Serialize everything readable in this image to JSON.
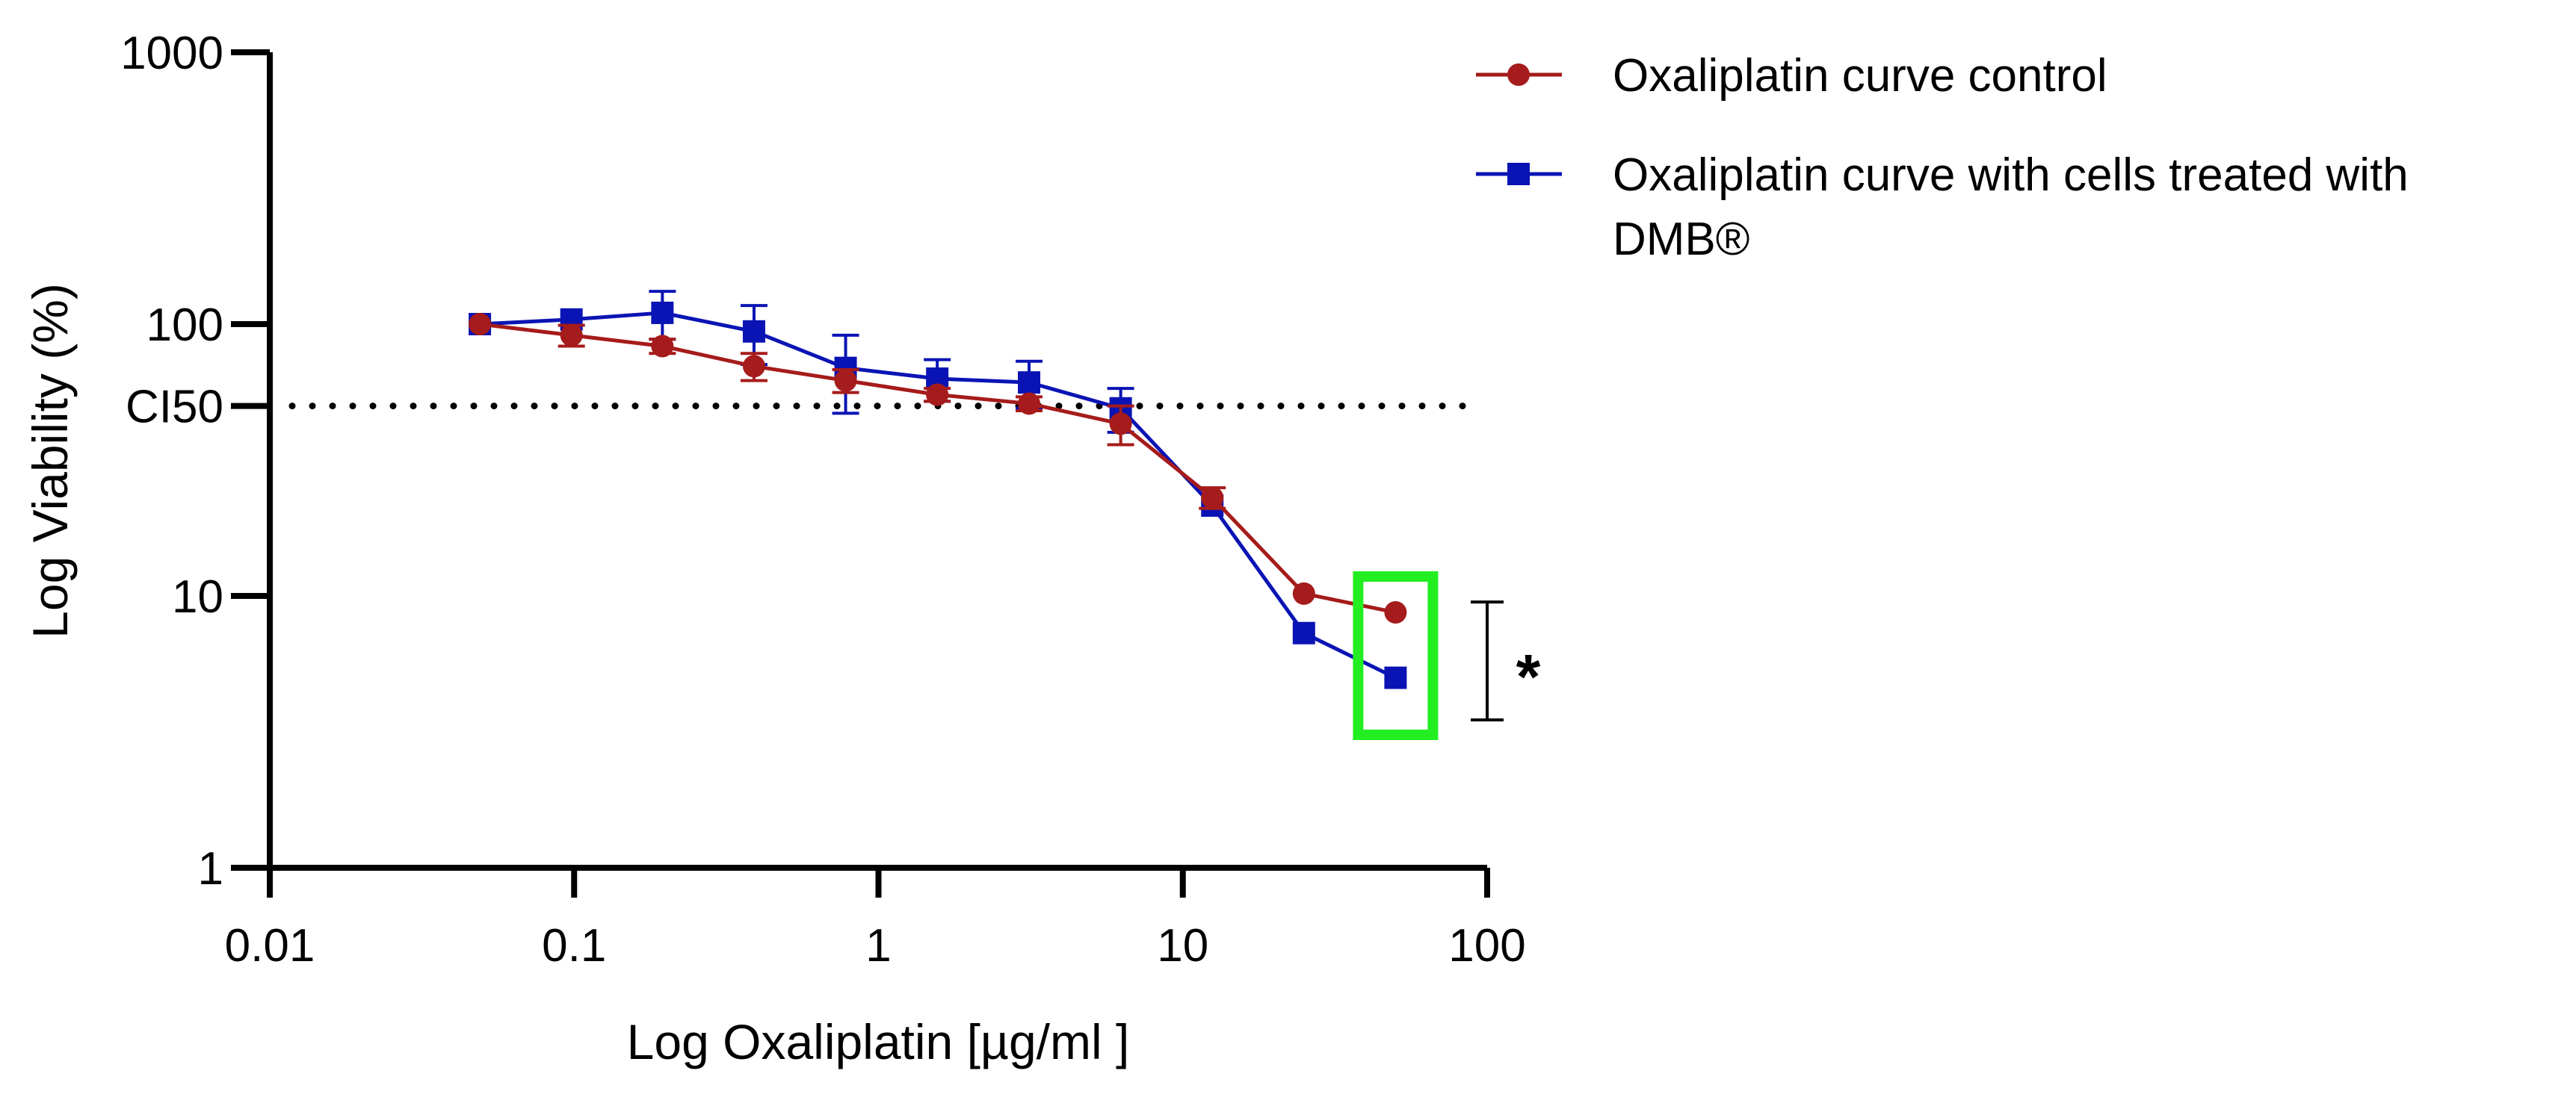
{
  "chart_data": {
    "type": "line",
    "title": "",
    "xlabel": "Log Oxaliplatin [µg/ml ]",
    "ylabel": "Log Viability (%)",
    "xscale": "log",
    "yscale": "log",
    "xlim": [
      0.01,
      100
    ],
    "ylim": [
      1,
      1000
    ],
    "x_ticks": [
      "0.01",
      "0.1",
      "1",
      "10",
      "100"
    ],
    "y_ticks": [
      "1",
      "10",
      "100",
      "1000"
    ],
    "x_tick_values": [
      0.01,
      0.1,
      1,
      10,
      100
    ],
    "y_tick_values": [
      1,
      10,
      100,
      1000
    ],
    "reference_line": {
      "label": "CI50",
      "y": 50,
      "style": "dotted"
    },
    "x": [
      0.049,
      0.098,
      0.195,
      0.39,
      0.78,
      1.56,
      3.125,
      6.25,
      12.5,
      25,
      50
    ],
    "series": [
      {
        "name": "Oxaliplatin curve control",
        "color": "#a61b1b",
        "marker": "circle",
        "values": [
          100,
          91,
          83,
          70,
          62,
          55,
          51,
          43,
          23,
          10.2,
          8.7
        ],
        "error": [
          0,
          8,
          5,
          8,
          6,
          3,
          3,
          7,
          2,
          0,
          0
        ]
      },
      {
        "name": "Oxaliplatin curve with cells treated with DMB®",
        "color": "#0a14b4",
        "marker": "square",
        "values": [
          100,
          104,
          110,
          94,
          69,
          63,
          61,
          49,
          21.5,
          7.3,
          5.0
        ],
        "error": [
          0,
          0,
          22,
          23,
          22,
          11,
          12,
          9,
          0,
          0,
          0
        ]
      }
    ],
    "legend": {
      "position": "top-right",
      "entries": [
        {
          "lines": [
            "Oxaliplatin curve control"
          ]
        },
        {
          "lines": [
            "Oxaliplatin curve with cells treated with",
            "DMB®"
          ]
        }
      ]
    },
    "annotations": {
      "significance_label": "*",
      "highlight_color": "#22ee22",
      "highlight_x": 50,
      "significance_range": [
        3.5,
        9.5
      ]
    }
  }
}
